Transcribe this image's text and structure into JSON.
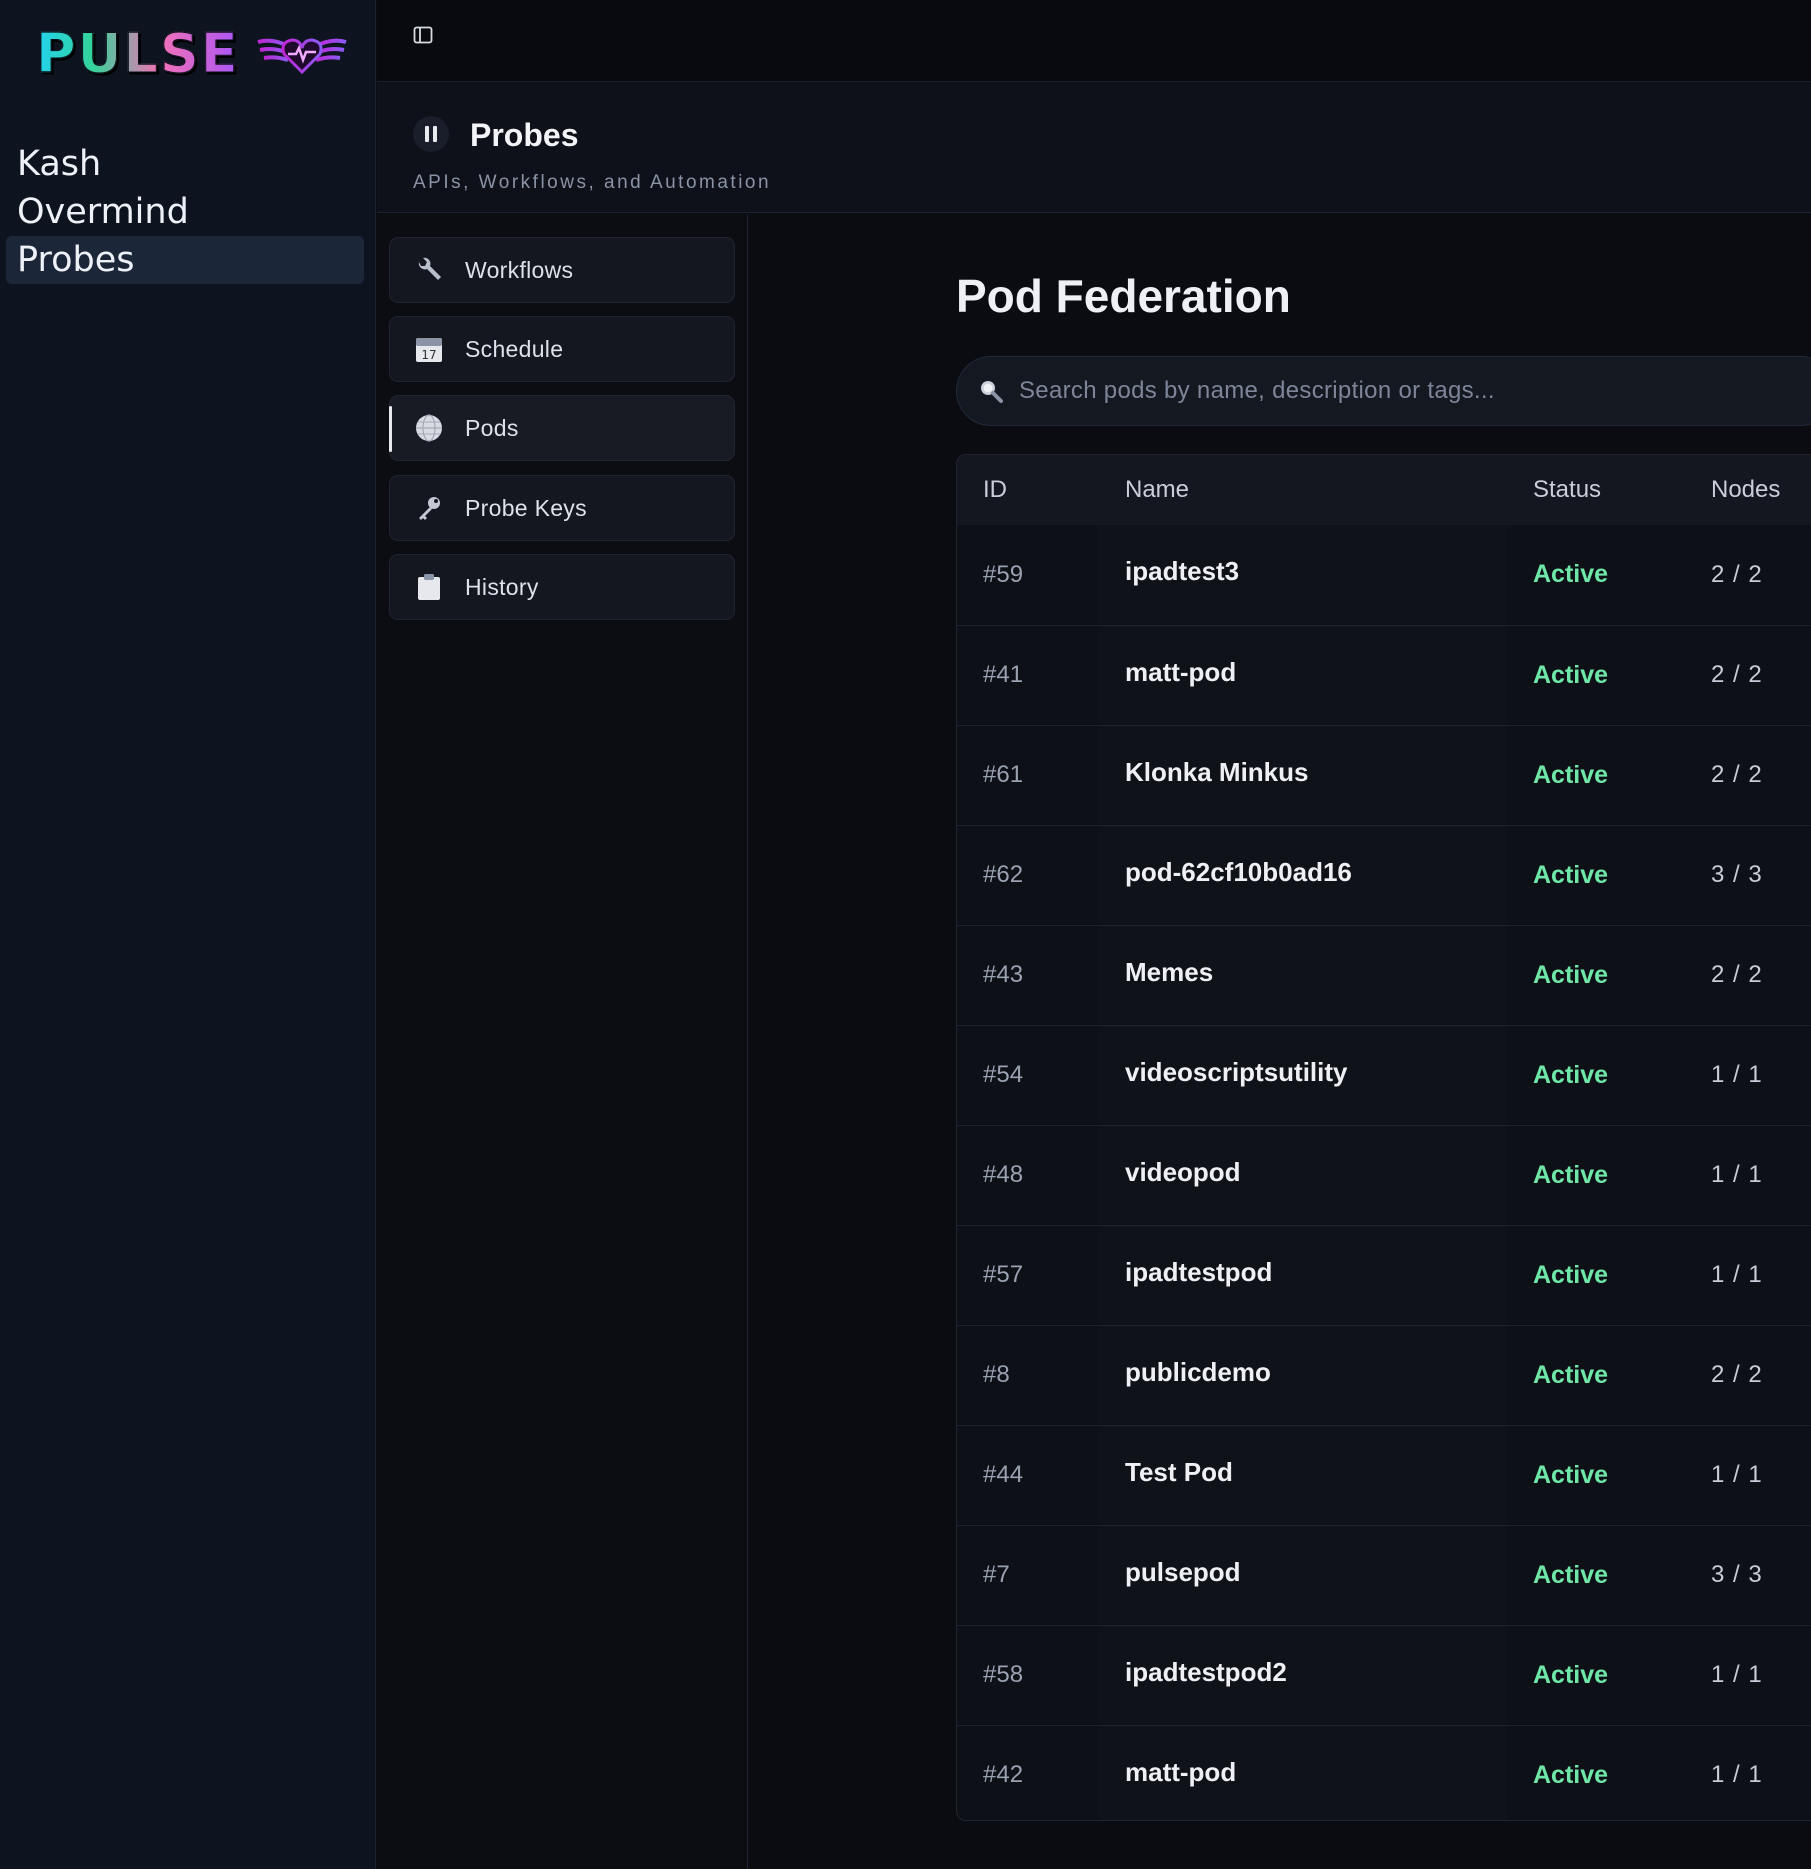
{
  "app": {
    "logo_text": "PULSE",
    "nav": [
      {
        "label": "Kash"
      },
      {
        "label": "Overmind"
      },
      {
        "label": "Probes",
        "active": true
      }
    ]
  },
  "section": {
    "title": "Probes",
    "subtitle": "APIs, Workflows, and Automation"
  },
  "subnav": [
    {
      "label": "Workflows",
      "icon": "wrench-icon"
    },
    {
      "label": "Schedule",
      "icon": "calendar-icon"
    },
    {
      "label": "Pods",
      "icon": "globe-icon",
      "active": true
    },
    {
      "label": "Probe Keys",
      "icon": "key-icon"
    },
    {
      "label": "History",
      "icon": "clipboard-icon"
    }
  ],
  "main": {
    "title": "Pod Federation",
    "search_placeholder": "Search pods by name, description or tags...",
    "table": {
      "headers": {
        "id": "ID",
        "name": "Name",
        "status": "Status",
        "nodes": "Nodes"
      },
      "rows": [
        {
          "id": "#59",
          "name": "ipadtest3",
          "status": "Active",
          "nodes": "2 / 2"
        },
        {
          "id": "#41",
          "name": "matt-pod",
          "status": "Active",
          "nodes": "2 / 2"
        },
        {
          "id": "#61",
          "name": "Klonka Minkus",
          "status": "Active",
          "nodes": "2 / 2"
        },
        {
          "id": "#62",
          "name": "pod-62cf10b0ad16",
          "status": "Active",
          "nodes": "3 / 3"
        },
        {
          "id": "#43",
          "name": "Memes",
          "status": "Active",
          "nodes": "2 / 2"
        },
        {
          "id": "#54",
          "name": "videoscriptsutility",
          "status": "Active",
          "nodes": "1 / 1"
        },
        {
          "id": "#48",
          "name": "videopod",
          "status": "Active",
          "nodes": "1 / 1"
        },
        {
          "id": "#57",
          "name": "ipadtestpod",
          "status": "Active",
          "nodes": "1 / 1"
        },
        {
          "id": "#8",
          "name": "publicdemo",
          "status": "Active",
          "nodes": "2 / 2"
        },
        {
          "id": "#44",
          "name": "Test Pod",
          "status": "Active",
          "nodes": "1 / 1"
        },
        {
          "id": "#7",
          "name": "pulsepod",
          "status": "Active",
          "nodes": "3 / 3"
        },
        {
          "id": "#58",
          "name": "ipadtestpod2",
          "status": "Active",
          "nodes": "1 / 1"
        },
        {
          "id": "#42",
          "name": "matt-pod",
          "status": "Active",
          "nodes": "1 / 1"
        }
      ]
    }
  },
  "colors": {
    "status_active": "#6ee7a8",
    "sidebar_active_bg": "#1b2639"
  }
}
